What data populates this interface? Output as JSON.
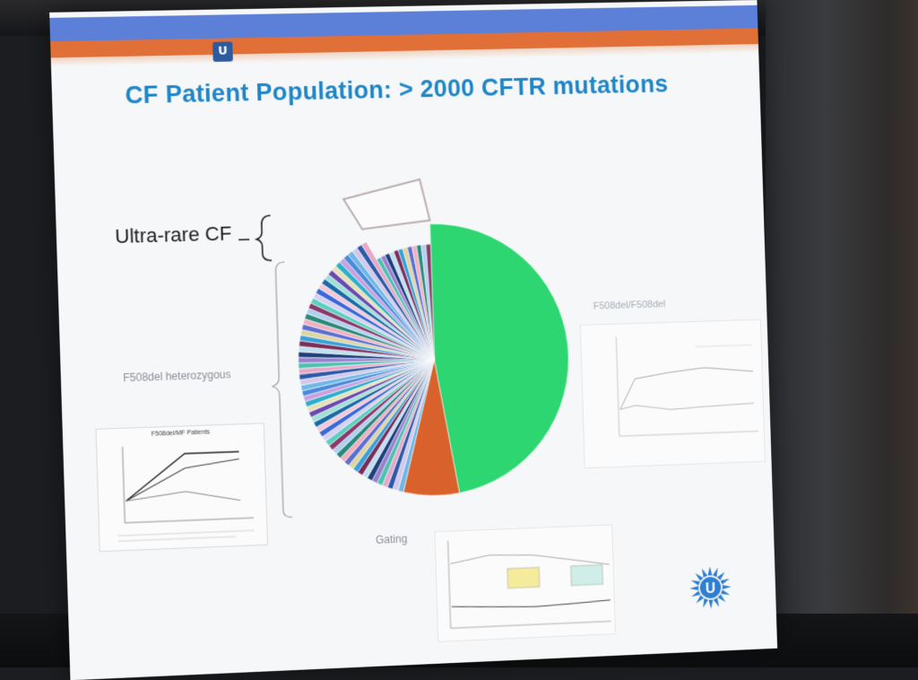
{
  "slide": {
    "title": "CF Patient Population: > 2000 CFTR mutations",
    "labels": {
      "ultra_rare": "Ultra-rare CF",
      "heterozygous": "F508del heterozygous",
      "gating": "Gating",
      "homozygous": "F508del/F508del"
    },
    "mini_charts": {
      "left_title": "F508del/MF Patients"
    },
    "colors": {
      "title": "#1e86c7",
      "top_band": "#5c7fd8",
      "accent_band": "#e07038",
      "pie_major": "#2ed672",
      "pie_orange": "#d9622c",
      "logo": "#2e7fd0"
    },
    "logo_letter": "U"
  }
}
